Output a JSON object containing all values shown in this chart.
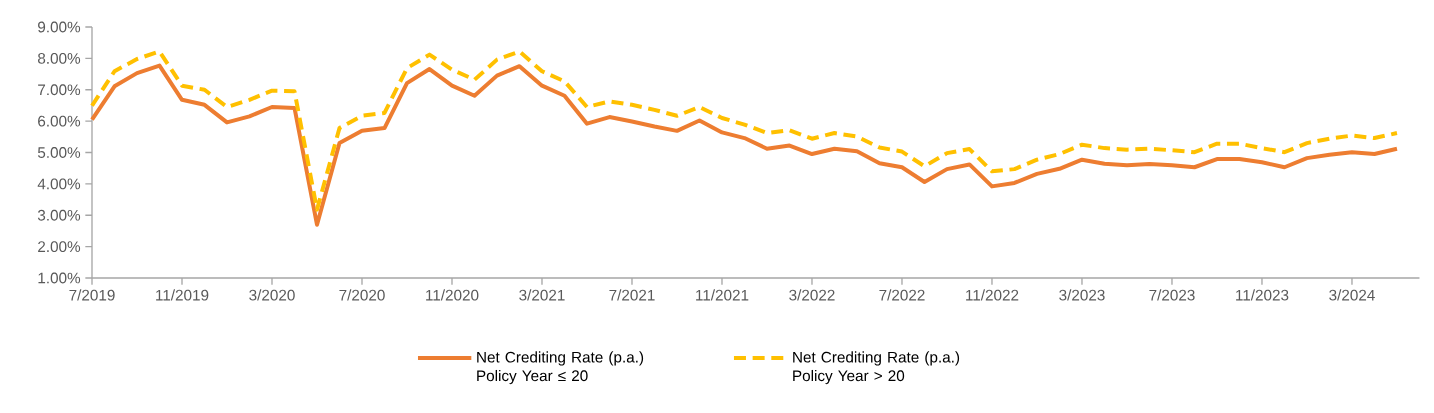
{
  "chart_data": {
    "type": "line",
    "x": [
      "2019-07",
      "2019-08",
      "2019-09",
      "2019-10",
      "2019-11",
      "2019-12",
      "2020-01",
      "2020-02",
      "2020-03",
      "2020-04",
      "2020-05",
      "2020-06",
      "2020-07",
      "2020-08",
      "2020-09",
      "2020-10",
      "2020-11",
      "2020-12",
      "2021-01",
      "2021-02",
      "2021-03",
      "2021-04",
      "2021-05",
      "2021-06",
      "2021-07",
      "2021-08",
      "2021-09",
      "2021-10",
      "2021-11",
      "2021-12",
      "2022-01",
      "2022-02",
      "2022-03",
      "2022-04",
      "2022-05",
      "2022-06",
      "2022-07",
      "2022-08",
      "2022-09",
      "2022-10",
      "2022-11",
      "2022-12",
      "2023-01",
      "2023-02",
      "2023-03",
      "2023-04",
      "2023-05",
      "2023-06",
      "2023-07",
      "2023-08",
      "2023-09",
      "2023-10",
      "2023-11",
      "2023-12",
      "2024-01",
      "2024-02",
      "2024-03",
      "2024-04",
      "2024-05"
    ],
    "series": [
      {
        "name": "Net Crediting Rate (p.a.) Policy Year ≤ 20",
        "color": "#ed7d31",
        "line_style": "solid",
        "values": [
          6.05,
          7.11,
          7.53,
          7.77,
          6.68,
          6.52,
          5.96,
          6.15,
          6.45,
          6.42,
          2.7,
          5.3,
          5.69,
          5.78,
          7.21,
          7.66,
          7.13,
          6.81,
          7.45,
          7.75,
          7.13,
          6.81,
          5.92,
          6.13,
          5.99,
          5.83,
          5.69,
          6.02,
          5.64,
          5.46,
          5.12,
          5.22,
          4.95,
          5.12,
          5.04,
          4.66,
          4.53,
          4.06,
          4.47,
          4.62,
          3.92,
          4.03,
          4.32,
          4.48,
          4.77,
          4.64,
          4.59,
          4.63,
          4.59,
          4.53,
          4.79,
          4.79,
          4.69,
          4.53,
          4.82,
          4.93,
          5.01,
          4.95,
          5.12
        ]
      },
      {
        "name": "Net Crediting Rate (p.a.) Policy Year > 20",
        "color": "#ffc000",
        "line_style": "dashed",
        "values": [
          6.49,
          7.59,
          7.98,
          8.22,
          7.13,
          7.0,
          6.45,
          6.68,
          6.97,
          6.95,
          3.18,
          5.78,
          6.17,
          6.26,
          7.69,
          8.12,
          7.64,
          7.32,
          7.96,
          8.22,
          7.59,
          7.27,
          6.45,
          6.63,
          6.52,
          6.36,
          6.17,
          6.45,
          6.1,
          5.89,
          5.62,
          5.71,
          5.44,
          5.62,
          5.51,
          5.16,
          5.03,
          4.56,
          4.98,
          5.11,
          4.4,
          4.47,
          4.77,
          4.95,
          5.25,
          5.14,
          5.09,
          5.12,
          5.07,
          5.01,
          5.28,
          5.28,
          5.14,
          5.01,
          5.3,
          5.44,
          5.54,
          5.46,
          5.62
        ]
      }
    ],
    "xlim": [
      "2019-07",
      "2024-06"
    ],
    "xticks": [
      {
        "value": "2019-07",
        "label": "7/2019"
      },
      {
        "value": "2019-11",
        "label": "11/2019"
      },
      {
        "value": "2020-03",
        "label": "3/2020"
      },
      {
        "value": "2020-07",
        "label": "7/2020"
      },
      {
        "value": "2020-11",
        "label": "11/2020"
      },
      {
        "value": "2021-03",
        "label": "3/2021"
      },
      {
        "value": "2021-07",
        "label": "7/2021"
      },
      {
        "value": "2021-11",
        "label": "11/2021"
      },
      {
        "value": "2022-03",
        "label": "3/2022"
      },
      {
        "value": "2022-07",
        "label": "7/2022"
      },
      {
        "value": "2022-11",
        "label": "11/2022"
      },
      {
        "value": "2023-03",
        "label": "3/2023"
      },
      {
        "value": "2023-07",
        "label": "7/2023"
      },
      {
        "value": "2023-11",
        "label": "11/2023"
      },
      {
        "value": "2024-03",
        "label": "3/2024"
      }
    ],
    "ylim": [
      1,
      9
    ],
    "yticks": [
      {
        "value": 1,
        "label": "1.00%"
      },
      {
        "value": 2,
        "label": "2.00%"
      },
      {
        "value": 3,
        "label": "3.00%"
      },
      {
        "value": 4,
        "label": "4.00%"
      },
      {
        "value": 5,
        "label": "5.00%"
      },
      {
        "value": 6,
        "label": "6.00%"
      },
      {
        "value": 7,
        "label": "7.00%"
      },
      {
        "value": 8,
        "label": "8.00%"
      },
      {
        "value": 9,
        "label": "9.00%"
      }
    ],
    "grid": false,
    "legend": "bottom",
    "marker": "none"
  }
}
